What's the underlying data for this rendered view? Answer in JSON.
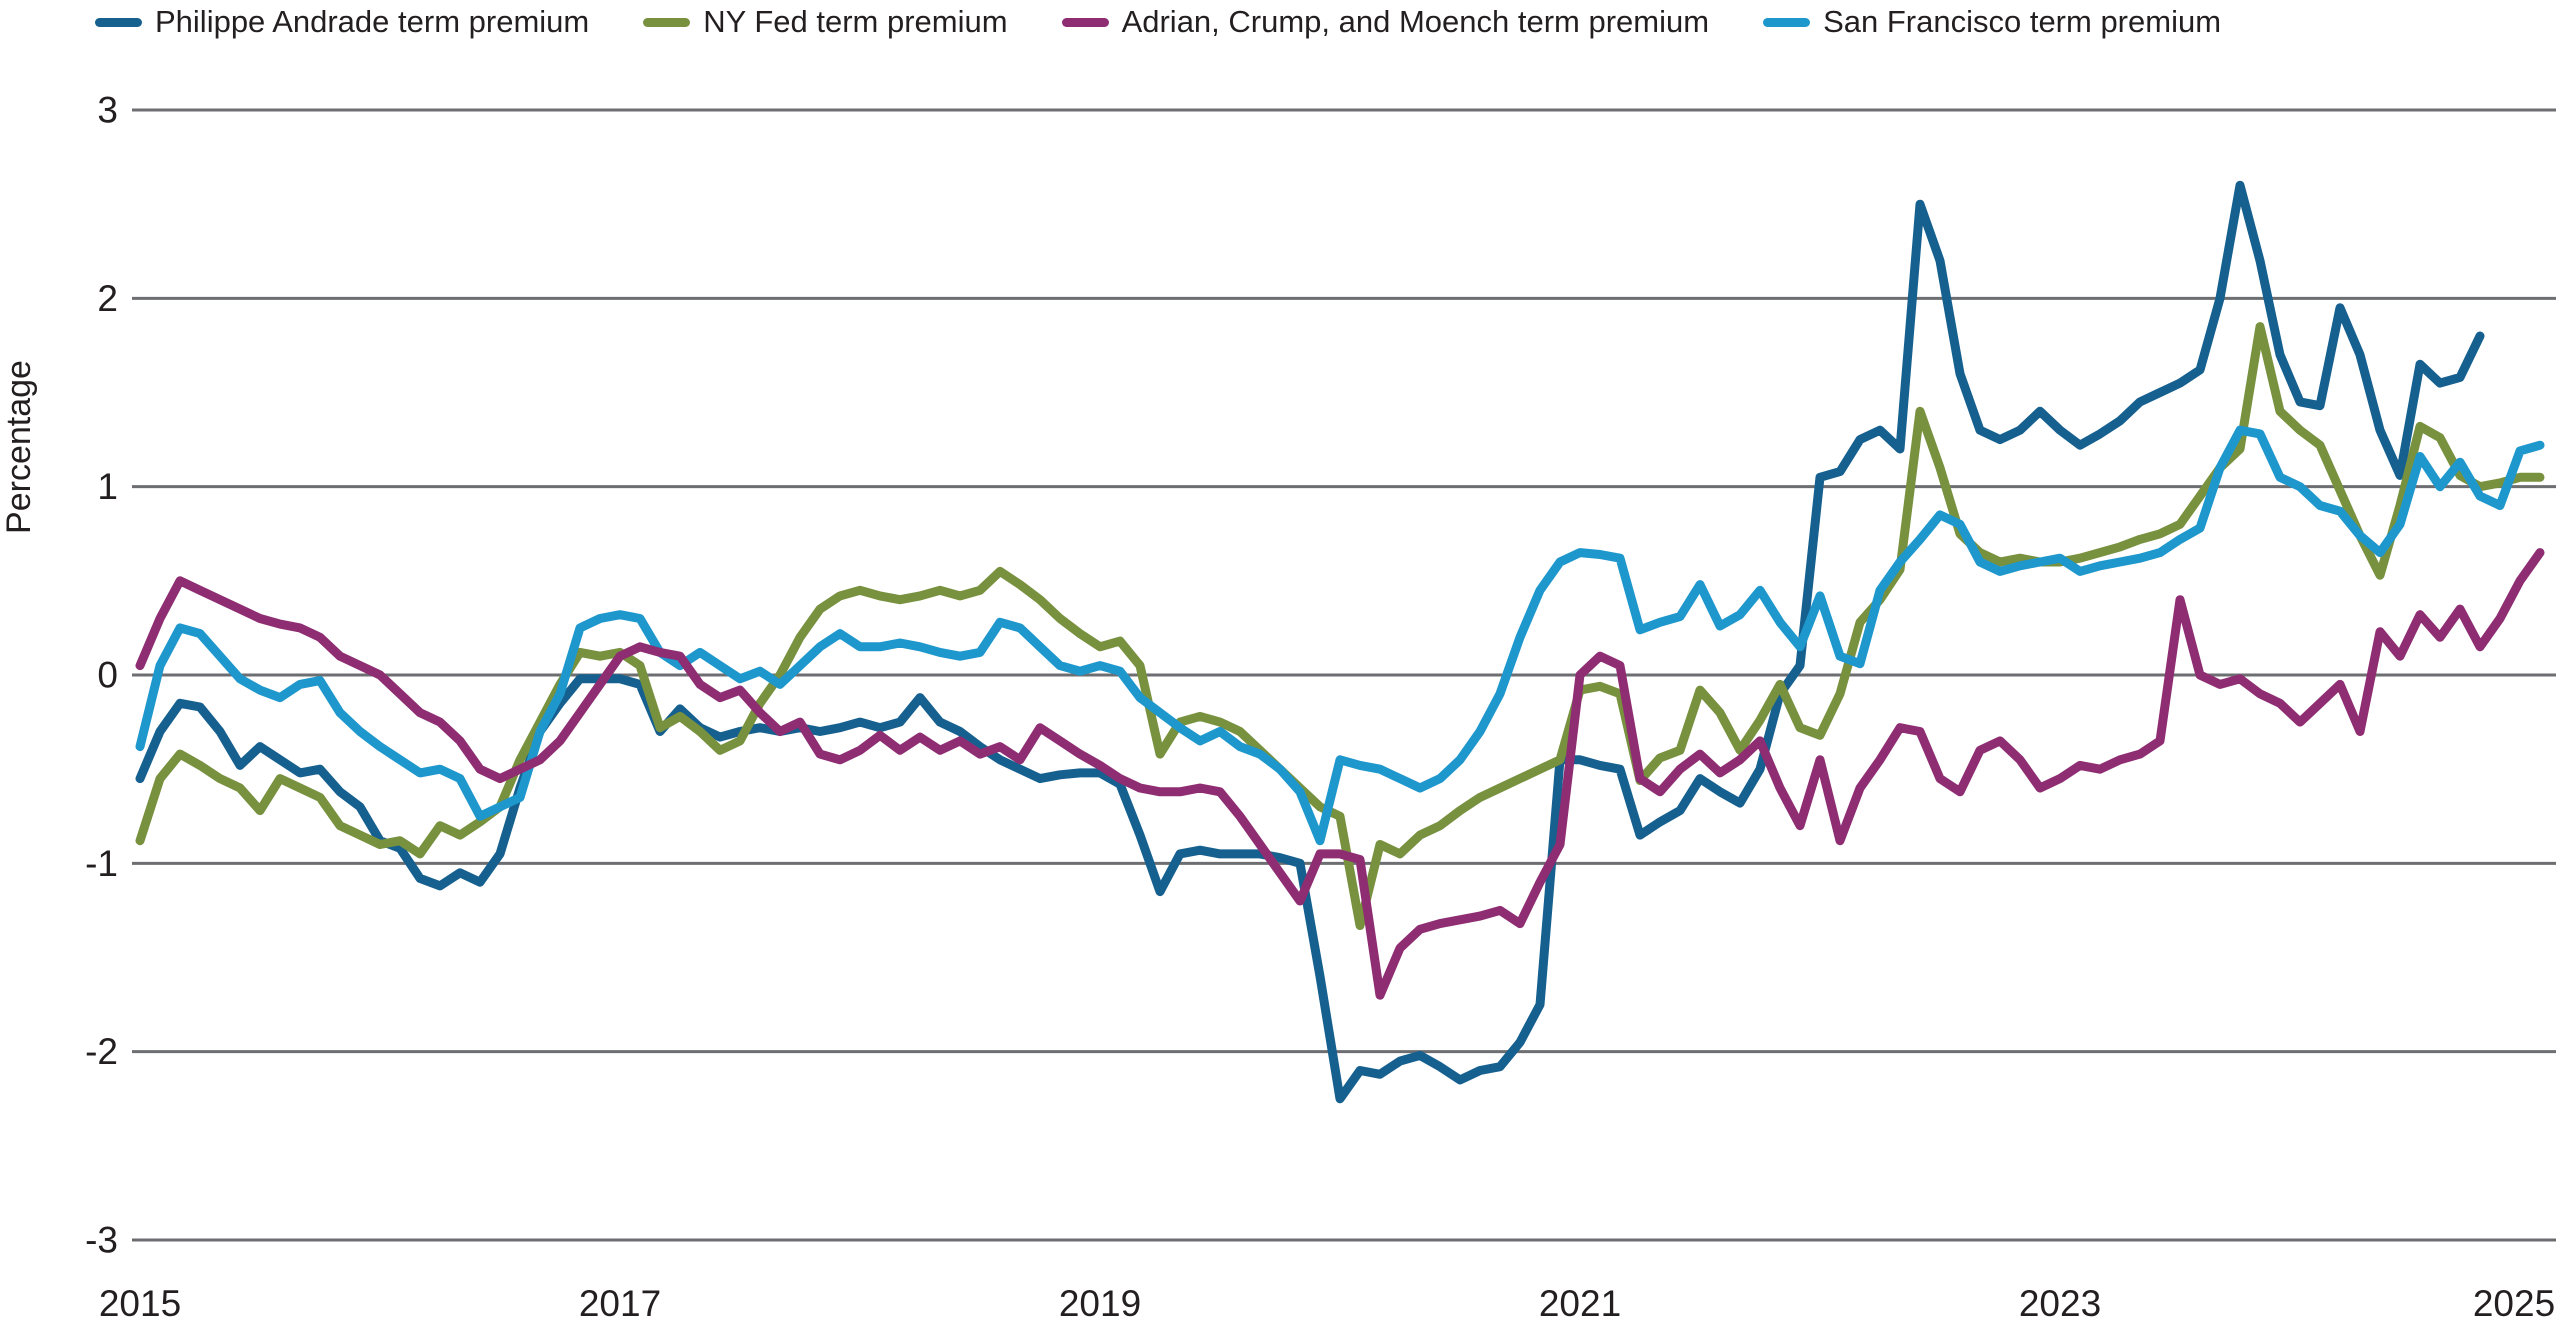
{
  "chart_data": {
    "type": "line",
    "title": "",
    "xlabel": "",
    "ylabel": "Percentage",
    "ylim": [
      -3,
      3
    ],
    "xlim_years": [
      2015,
      2025.1
    ],
    "yticks": [
      3,
      2,
      1,
      0,
      -1,
      -2,
      -3
    ],
    "xticks": [
      2015,
      2017,
      2019,
      2021,
      2023,
      2025
    ],
    "grid": "horizontal",
    "legend_position": "top",
    "x_unit": "monthly starting Jan 2015",
    "series": [
      {
        "name": "Philippe Andrade term premium",
        "color": "#16608f",
        "start_month_index": 0,
        "values": [
          -0.55,
          -0.3,
          -0.15,
          -0.17,
          -0.3,
          -0.48,
          -0.38,
          -0.45,
          -0.52,
          -0.5,
          -0.62,
          -0.7,
          -0.88,
          -0.92,
          -1.08,
          -1.12,
          -1.05,
          -1.1,
          -0.95,
          -0.6,
          -0.3,
          -0.15,
          -0.02,
          -0.02,
          -0.02,
          -0.05,
          -0.3,
          -0.18,
          -0.28,
          -0.33,
          -0.3,
          -0.28,
          -0.3,
          -0.28,
          -0.3,
          -0.28,
          -0.25,
          -0.28,
          -0.25,
          -0.12,
          -0.25,
          -0.3,
          -0.38,
          -0.45,
          -0.5,
          -0.55,
          -0.53,
          -0.52,
          -0.52,
          -0.58,
          -0.85,
          -1.15,
          -0.95,
          -0.93,
          -0.95,
          -0.95,
          -0.95,
          -0.97,
          -1.0,
          -1.6,
          -2.25,
          -2.1,
          -2.12,
          -2.05,
          -2.02,
          -2.08,
          -2.15,
          -2.1,
          -2.08,
          -1.95,
          -1.75,
          -0.45,
          -0.45,
          -0.48,
          -0.5,
          -0.85,
          -0.78,
          -0.72,
          -0.55,
          -0.62,
          -0.68,
          -0.5,
          -0.1,
          0.05,
          1.05,
          1.08,
          1.25,
          1.3,
          1.2,
          2.5,
          2.2,
          1.6,
          1.3,
          1.25,
          1.3,
          1.4,
          1.3,
          1.22,
          1.28,
          1.35,
          1.45,
          1.5,
          1.55,
          1.62,
          2.0,
          2.6,
          2.2,
          1.7,
          1.45,
          1.43,
          1.95,
          1.7,
          1.3,
          1.06,
          1.65,
          1.55,
          1.58,
          1.8
        ]
      },
      {
        "name": "NY Fed term premium",
        "color": "#78913f",
        "start_month_index": 0,
        "values": [
          -0.88,
          -0.55,
          -0.42,
          -0.48,
          -0.55,
          -0.6,
          -0.72,
          -0.55,
          -0.6,
          -0.65,
          -0.8,
          -0.85,
          -0.9,
          -0.88,
          -0.95,
          -0.8,
          -0.85,
          -0.78,
          -0.7,
          -0.45,
          -0.25,
          -0.05,
          0.12,
          0.1,
          0.12,
          0.05,
          -0.28,
          -0.22,
          -0.3,
          -0.4,
          -0.35,
          -0.15,
          0.0,
          0.2,
          0.35,
          0.42,
          0.45,
          0.42,
          0.4,
          0.42,
          0.45,
          0.42,
          0.45,
          0.55,
          0.48,
          0.4,
          0.3,
          0.22,
          0.15,
          0.18,
          0.05,
          -0.42,
          -0.25,
          -0.22,
          -0.25,
          -0.3,
          -0.4,
          -0.5,
          -0.6,
          -0.7,
          -0.75,
          -1.33,
          -0.9,
          -0.95,
          -0.85,
          -0.8,
          -0.72,
          -0.65,
          -0.6,
          -0.55,
          -0.5,
          -0.45,
          -0.08,
          -0.06,
          -0.1,
          -0.56,
          -0.44,
          -0.4,
          -0.08,
          -0.2,
          -0.4,
          -0.24,
          -0.05,
          -0.28,
          -0.32,
          -0.1,
          0.28,
          0.4,
          0.56,
          1.4,
          1.1,
          0.75,
          0.65,
          0.6,
          0.62,
          0.6,
          0.6,
          0.62,
          0.65,
          0.68,
          0.72,
          0.75,
          0.8,
          0.95,
          1.1,
          1.2,
          1.85,
          1.4,
          1.3,
          1.22,
          0.98,
          0.74,
          0.53,
          0.9,
          1.32,
          1.26,
          1.06,
          1.0,
          1.02,
          1.05,
          1.05
        ]
      },
      {
        "name": "Adrian, Crump, and Moench term premium",
        "color": "#8e2d72",
        "start_month_index": 0,
        "values": [
          0.05,
          0.3,
          0.5,
          0.45,
          0.4,
          0.35,
          0.3,
          0.27,
          0.25,
          0.2,
          0.1,
          0.05,
          0.0,
          -0.1,
          -0.2,
          -0.25,
          -0.35,
          -0.5,
          -0.55,
          -0.5,
          -0.45,
          -0.35,
          -0.2,
          -0.05,
          0.1,
          0.15,
          0.12,
          0.1,
          -0.05,
          -0.12,
          -0.08,
          -0.2,
          -0.3,
          -0.25,
          -0.42,
          -0.45,
          -0.4,
          -0.32,
          -0.4,
          -0.33,
          -0.4,
          -0.35,
          -0.42,
          -0.38,
          -0.45,
          -0.28,
          -0.35,
          -0.42,
          -0.48,
          -0.55,
          -0.6,
          -0.62,
          -0.62,
          -0.6,
          -0.62,
          -0.75,
          -0.9,
          -1.05,
          -1.2,
          -0.95,
          -0.95,
          -0.98,
          -1.7,
          -1.45,
          -1.35,
          -1.32,
          -1.3,
          -1.28,
          -1.25,
          -1.32,
          -1.1,
          -0.9,
          0.0,
          0.1,
          0.05,
          -0.55,
          -0.62,
          -0.5,
          -0.42,
          -0.52,
          -0.45,
          -0.35,
          -0.6,
          -0.8,
          -0.45,
          -0.88,
          -0.6,
          -0.45,
          -0.28,
          -0.3,
          -0.55,
          -0.62,
          -0.4,
          -0.35,
          -0.45,
          -0.6,
          -0.55,
          -0.48,
          -0.5,
          -0.45,
          -0.42,
          -0.35,
          0.4,
          0.0,
          -0.05,
          -0.02,
          -0.1,
          -0.15,
          -0.25,
          -0.15,
          -0.05,
          -0.3,
          0.23,
          0.1,
          0.32,
          0.2,
          0.35,
          0.15,
          0.3,
          0.5,
          0.65
        ]
      },
      {
        "name": "San Francisco term premium",
        "color": "#1e97cd",
        "start_month_index": 0,
        "values": [
          -0.38,
          0.05,
          0.25,
          0.22,
          0.1,
          -0.02,
          -0.08,
          -0.12,
          -0.05,
          -0.03,
          -0.2,
          -0.3,
          -0.38,
          -0.45,
          -0.52,
          -0.5,
          -0.55,
          -0.75,
          -0.7,
          -0.65,
          -0.3,
          -0.1,
          0.25,
          0.3,
          0.32,
          0.3,
          0.12,
          0.05,
          0.12,
          0.05,
          -0.02,
          0.02,
          -0.05,
          0.05,
          0.15,
          0.22,
          0.15,
          0.15,
          0.17,
          0.15,
          0.12,
          0.1,
          0.12,
          0.28,
          0.25,
          0.15,
          0.05,
          0.02,
          0.05,
          0.02,
          -0.12,
          -0.2,
          -0.28,
          -0.35,
          -0.3,
          -0.38,
          -0.42,
          -0.5,
          -0.62,
          -0.88,
          -0.45,
          -0.48,
          -0.5,
          -0.55,
          -0.6,
          -0.55,
          -0.45,
          -0.3,
          -0.1,
          0.2,
          0.45,
          0.6,
          0.65,
          0.64,
          0.62,
          0.24,
          0.28,
          0.31,
          0.48,
          0.26,
          0.32,
          0.45,
          0.28,
          0.15,
          0.42,
          0.1,
          0.06,
          0.45,
          0.6,
          0.72,
          0.85,
          0.8,
          0.6,
          0.55,
          0.58,
          0.6,
          0.62,
          0.55,
          0.58,
          0.6,
          0.62,
          0.65,
          0.72,
          0.78,
          1.1,
          1.3,
          1.28,
          1.05,
          1.0,
          0.9,
          0.87,
          0.74,
          0.65,
          0.8,
          1.16,
          1.0,
          1.13,
          0.95,
          0.9,
          1.19,
          1.22
        ]
      }
    ]
  },
  "axes": {
    "ylabel": "Percentage",
    "ytick_labels": [
      "3",
      "2",
      "1",
      "0",
      "-1",
      "-2",
      "-3"
    ],
    "xtick_labels": [
      "2015",
      "2017",
      "2019",
      "2021",
      "2023",
      "2025"
    ]
  },
  "style": {
    "gridline_color": "#6d6e71",
    "tick_text_color": "#231f20",
    "background_color": "#ffffff"
  }
}
